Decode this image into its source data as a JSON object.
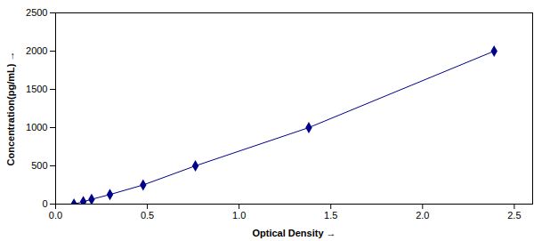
{
  "chart_data": {
    "type": "line",
    "x": [
      0.1,
      0.151,
      0.196,
      0.296,
      0.477,
      0.762,
      1.38,
      2.39
    ],
    "values": [
      0,
      31.25,
      62.5,
      125,
      250,
      500,
      1000,
      2000
    ],
    "color": "#00008B",
    "marker": "diamond",
    "xlabel": "Optical Density",
    "ylabel": "Concentration(pg/mL)",
    "xlim": [
      0,
      2.6
    ],
    "ylim": [
      0,
      2500
    ],
    "xticks": [
      {
        "value": 0,
        "label": "0.0"
      },
      0.5,
      {
        "value": 1,
        "label": "1.0"
      },
      1.5,
      {
        "value": 2,
        "label": "2.0"
      },
      2.5
    ],
    "yticks": [
      0,
      500,
      1000,
      1500,
      2000,
      2500
    ],
    "grid": false
  }
}
